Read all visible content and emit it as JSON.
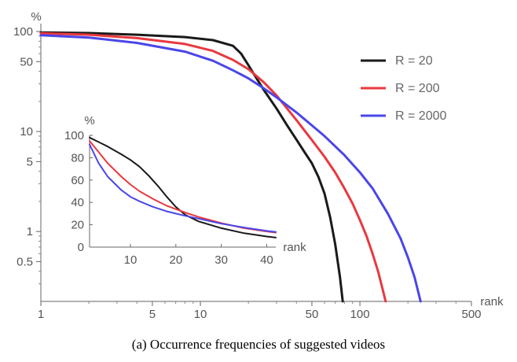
{
  "chart_data": [
    {
      "type": "line",
      "scale": "log-log",
      "xlabel": "rank",
      "ylabel": "%",
      "xlim": [
        1,
        500
      ],
      "ylim": [
        0.2,
        120
      ],
      "xticks": [
        1,
        5,
        10,
        50,
        100,
        500
      ],
      "yticks": [
        0.5,
        1,
        5,
        10,
        50,
        100
      ],
      "series": [
        {
          "name": "R = 20",
          "color": "#1a1a1a",
          "x": [
            1,
            2,
            4,
            8,
            12,
            16,
            18,
            20,
            22,
            25,
            30,
            35,
            40,
            45,
            50,
            55,
            60,
            65,
            70,
            75,
            78
          ],
          "y": [
            98,
            96.5,
            93,
            88,
            82,
            72,
            60,
            46,
            36,
            26,
            17,
            11.5,
            8.3,
            6.2,
            4.8,
            3.5,
            2.4,
            1.4,
            0.75,
            0.35,
            0.2
          ]
        },
        {
          "name": "R = 200",
          "color": "#e8393f",
          "x": [
            1,
            2,
            4,
            8,
            12,
            16,
            20,
            25,
            30,
            40,
            50,
            60,
            70,
            80,
            90,
            100,
            110,
            120,
            130,
            140,
            145
          ],
          "y": [
            96,
            93,
            86,
            75,
            64,
            52,
            42,
            31,
            23,
            13,
            8.2,
            5.6,
            3.9,
            2.7,
            1.9,
            1.3,
            0.9,
            0.6,
            0.4,
            0.25,
            0.2
          ]
        },
        {
          "name": "R = 2000",
          "color": "#4a46e8",
          "x": [
            1,
            2,
            4,
            8,
            12,
            16,
            20,
            25,
            30,
            40,
            50,
            60,
            80,
            100,
            120,
            150,
            180,
            200,
            220,
            240
          ],
          "y": [
            92,
            87,
            77,
            63,
            51,
            41,
            34,
            27,
            22,
            15.5,
            11.5,
            9,
            5.8,
            3.9,
            2.7,
            1.5,
            0.85,
            0.55,
            0.35,
            0.2
          ]
        }
      ],
      "legend_position": "top-right"
    },
    {
      "type": "line",
      "inset": true,
      "xlabel": "rank",
      "ylabel": "%",
      "xlim": [
        1,
        42
      ],
      "ylim": [
        0,
        100
      ],
      "xticks": [
        10,
        20,
        30,
        40
      ],
      "yticks": [
        0,
        20,
        40,
        60,
        80,
        100
      ],
      "series": [
        {
          "name": "R = 20",
          "color": "#1a1a1a",
          "x": [
            1,
            3,
            5,
            8,
            10,
            12,
            14,
            16,
            18,
            20,
            22,
            25,
            30,
            35,
            40,
            42
          ],
          "y": [
            98,
            94,
            90,
            83,
            78,
            72,
            64,
            55,
            45,
            36,
            29,
            23,
            17,
            12.5,
            9.5,
            8.5
          ]
        },
        {
          "name": "R = 200",
          "color": "#e8393f",
          "x": [
            1,
            3,
            5,
            8,
            10,
            12,
            15,
            18,
            20,
            22,
            25,
            30,
            35,
            40,
            42
          ],
          "y": [
            95,
            85,
            75,
            63,
            56,
            50,
            43,
            37,
            34,
            31,
            27,
            21.5,
            17,
            14,
            13
          ]
        },
        {
          "name": "R = 2000",
          "color": "#4a46e8",
          "x": [
            1,
            3,
            5,
            8,
            10,
            12,
            15,
            18,
            20,
            22,
            25,
            30,
            35,
            40,
            42
          ],
          "y": [
            92,
            75,
            63,
            51,
            45,
            41,
            36,
            32,
            30,
            28,
            25.5,
            21,
            17.5,
            14.5,
            13.5
          ]
        }
      ]
    }
  ],
  "caption": "(a) Occurrence frequencies of suggested videos"
}
